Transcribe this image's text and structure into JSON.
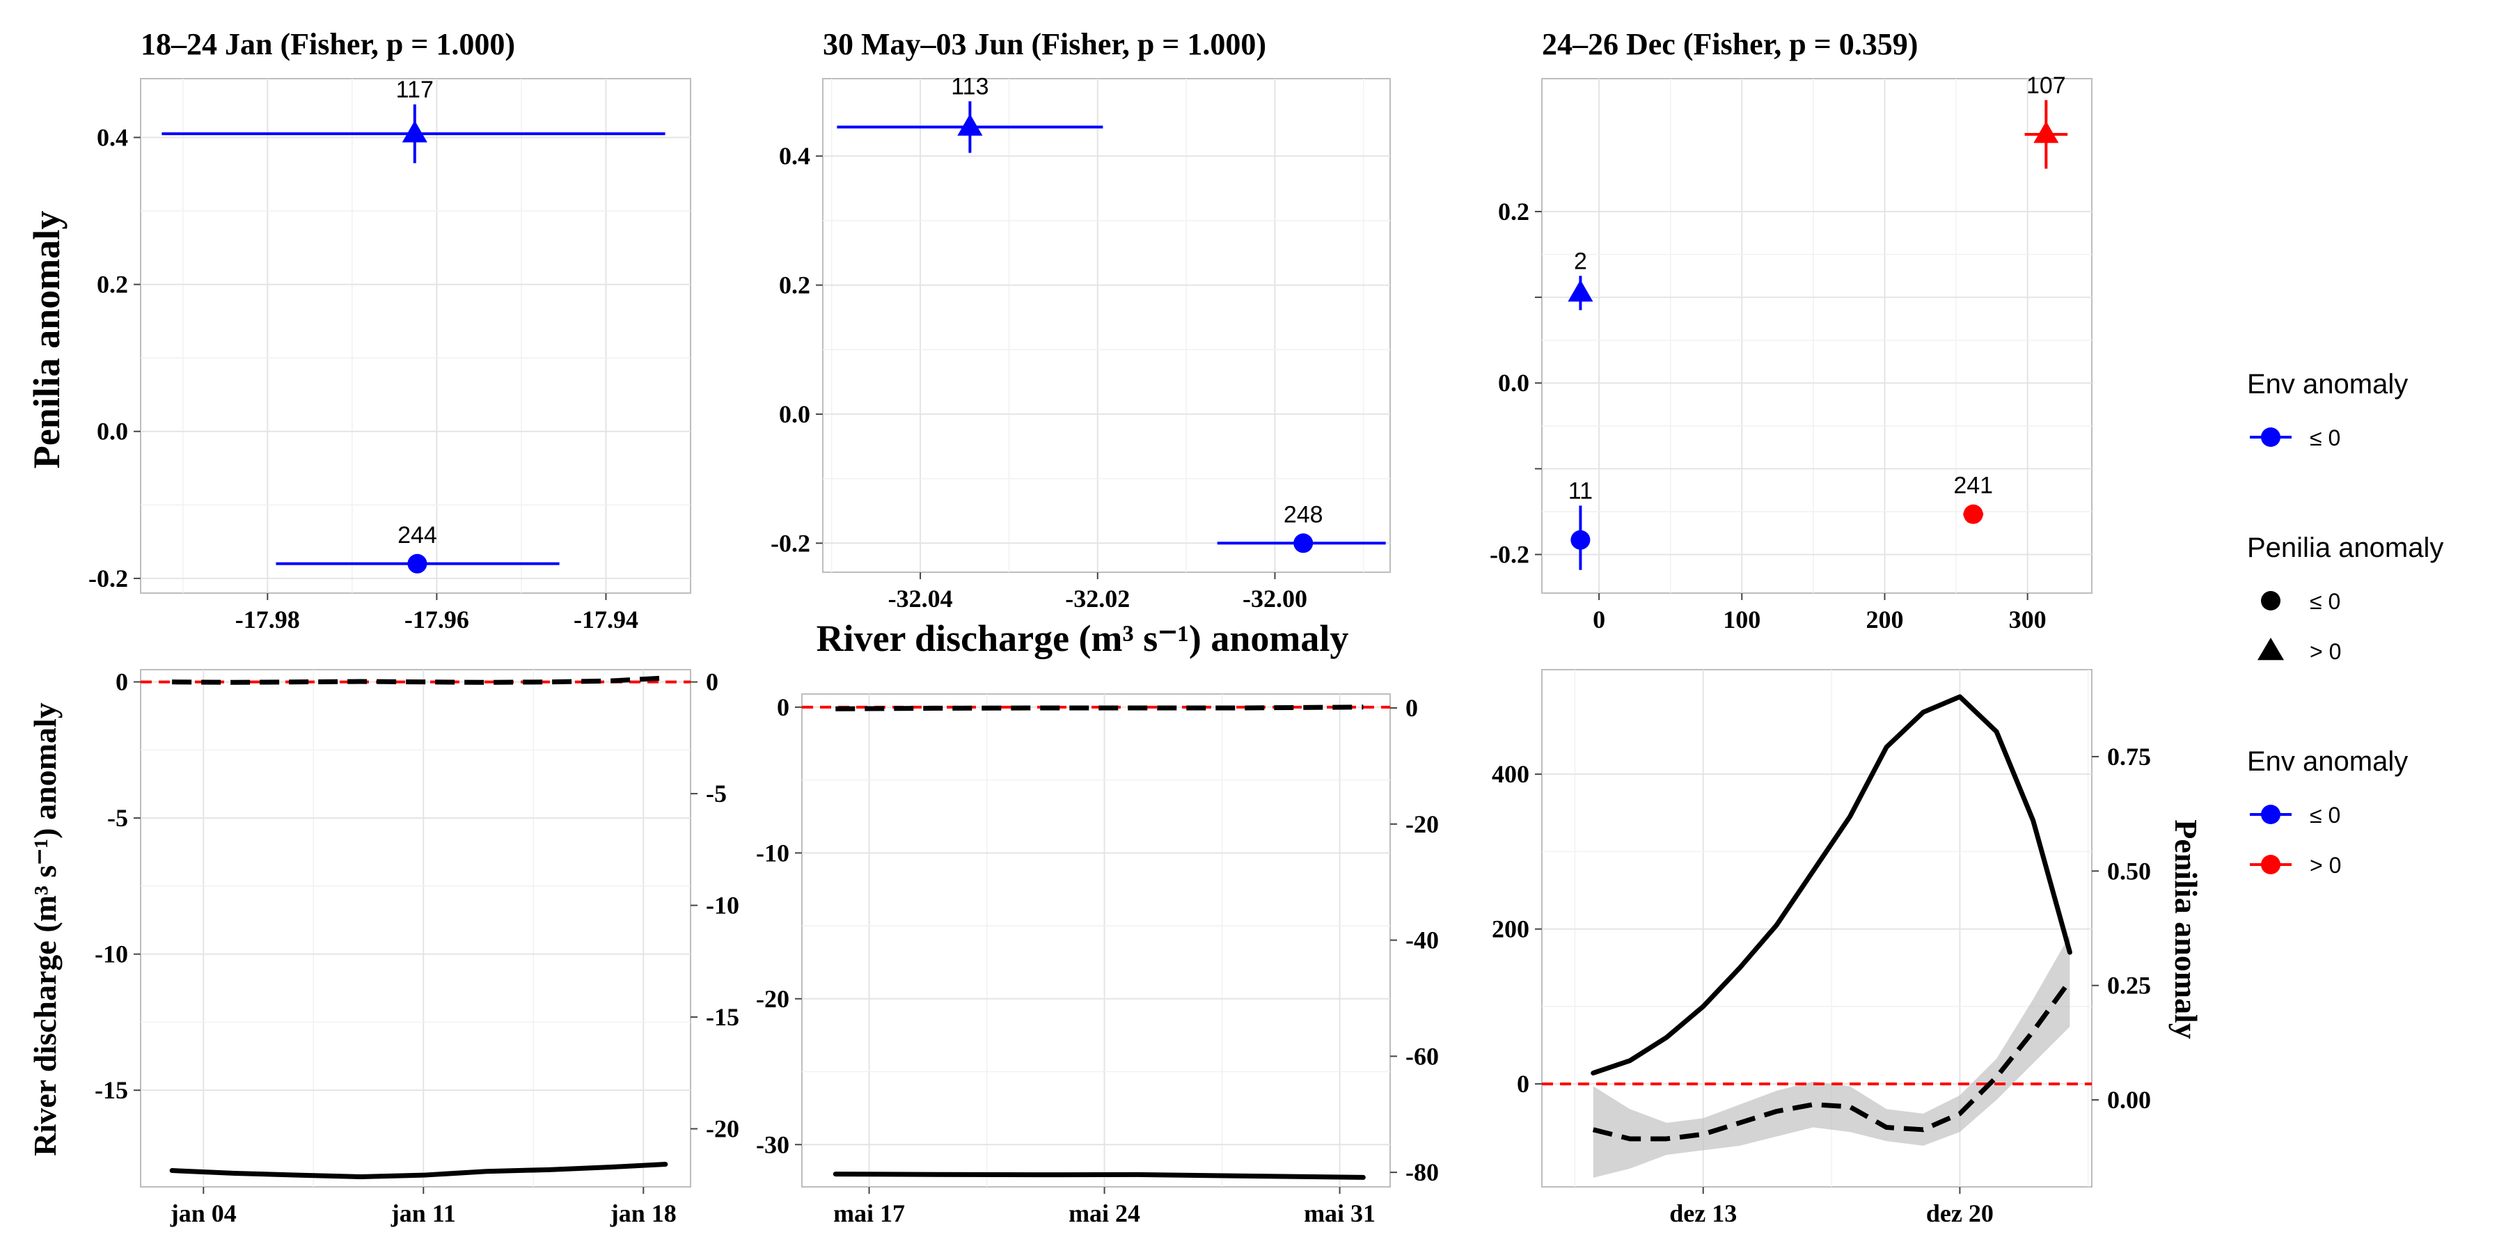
{
  "figure": {
    "shared_x_title": "River discharge (m³ s⁻¹) anomaly",
    "top_y_title": "Penilia anomaly",
    "bottom_left_y_title": "River discharge (m³ s⁻¹) anomaly",
    "bottom_right_y_title": "Penilia anomaly"
  },
  "colors": {
    "blue": "#0000ff",
    "red": "#ff0000",
    "black": "#000000",
    "zero_line": "#ff0000",
    "ribbon": "#bdbdbd"
  },
  "legend": {
    "groups": [
      {
        "title": "Env anomaly",
        "items": [
          {
            "label": "≤ 0",
            "kind": "line-point",
            "color": "#0000ff"
          }
        ]
      },
      {
        "title": "Penilia anomaly",
        "items": [
          {
            "label": "≤ 0",
            "kind": "circle",
            "color": "#000000"
          },
          {
            "label": "> 0",
            "kind": "triangle",
            "color": "#000000"
          }
        ]
      },
      {
        "title": "Env anomaly",
        "items": [
          {
            "label": "≤ 0",
            "kind": "line-point",
            "color": "#0000ff"
          },
          {
            "label": "> 0",
            "kind": "line-point",
            "color": "#ff0000"
          }
        ]
      }
    ]
  },
  "chart_data": [
    {
      "type": "scatter",
      "panel": "top-left",
      "title": "18–24 Jan (Fisher, p = 1.000)",
      "ylabel": "Penilia anomaly",
      "xlim": [
        -17.995,
        -17.93
      ],
      "ylim": [
        -0.22,
        0.48
      ],
      "xticks": [
        -17.98,
        -17.96,
        -17.94
      ],
      "xtick_labels": [
        "-17.98",
        "-17.96",
        "-17.94"
      ],
      "yticks": [
        -0.2,
        0.0,
        0.2,
        0.4
      ],
      "ytick_labels": [
        "-0.2",
        "0.0",
        "0.2",
        "0.4"
      ],
      "points": [
        {
          "x": -17.9626,
          "y": 0.405,
          "shape": "triangle",
          "color": "#0000ff",
          "xmin": -17.9925,
          "xmax": -17.933,
          "ymin": 0.365,
          "ymax": 0.445,
          "count": "117"
        },
        {
          "x": -17.9623,
          "y": -0.18,
          "shape": "circle",
          "color": "#0000ff",
          "xmin": -17.979,
          "xmax": -17.9455,
          "ymin": -0.18,
          "ymax": -0.18,
          "count": "244"
        }
      ]
    },
    {
      "type": "scatter",
      "panel": "top-middle",
      "title": "30 May–03 Jun (Fisher, p = 1.000)",
      "xlim": [
        -32.051,
        -31.987
      ],
      "ylim": [
        -0.245,
        0.52
      ],
      "xticks": [
        -32.04,
        -32.02,
        -32.0
      ],
      "xtick_labels": [
        "-32.04",
        "-32.02",
        "-32.00"
      ],
      "yticks": [
        -0.2,
        0.0,
        0.2,
        0.4
      ],
      "ytick_labels": [
        "-0.2",
        "0.0",
        "0.2",
        "0.4"
      ],
      "points": [
        {
          "x": -32.0344,
          "y": 0.445,
          "shape": "triangle",
          "color": "#0000ff",
          "xmin": -32.0494,
          "xmax": -32.0194,
          "ymin": 0.405,
          "ymax": 0.485,
          "count": "113"
        },
        {
          "x": -31.9968,
          "y": -0.2,
          "shape": "circle",
          "color": "#0000ff",
          "xmin": -32.0065,
          "xmax": -31.9875,
          "ymin": -0.2,
          "ymax": -0.2,
          "count": "248"
        }
      ]
    },
    {
      "type": "scatter",
      "panel": "top-right",
      "title": "24–26 Dec (Fisher, p = 0.359)",
      "xlim": [
        -40,
        345
      ],
      "ylim": [
        -0.245,
        0.355
      ],
      "xticks": [
        0,
        100,
        200,
        300
      ],
      "xtick_labels": [
        "0",
        "100",
        "200",
        "300"
      ],
      "yticks": [
        -0.2,
        -0.1,
        0.0,
        0.1,
        0.2
      ],
      "ytick_labels": [
        "-0.2",
        "",
        "0.0",
        "",
        "0.2"
      ],
      "points": [
        {
          "x": -13,
          "y": 0.105,
          "shape": "triangle",
          "color": "#0000ff",
          "xmin": -13,
          "xmax": -13,
          "ymin": 0.085,
          "ymax": 0.125,
          "count": "2"
        },
        {
          "x": -13,
          "y": -0.183,
          "shape": "circle",
          "color": "#0000ff",
          "xmin": -13,
          "xmax": -13,
          "ymin": -0.218,
          "ymax": -0.143,
          "count": "11"
        },
        {
          "x": 262,
          "y": -0.153,
          "shape": "circle",
          "color": "#ff0000",
          "xmin": 255,
          "xmax": 269,
          "ymin": -0.153,
          "ymax": -0.153,
          "count": "241"
        },
        {
          "x": 313,
          "y": 0.29,
          "shape": "triangle",
          "color": "#ff0000",
          "xmin": 298,
          "xmax": 328,
          "ymin": 0.25,
          "ymax": 0.33,
          "count": "107"
        }
      ]
    },
    {
      "type": "line",
      "panel": "bottom-left",
      "ylabel": "River discharge (m³ s⁻¹) anomaly",
      "xlim": [
        -2.0,
        15.5
      ],
      "ylim": [
        -18.55,
        0.45
      ],
      "xticks": [
        0,
        7,
        14
      ],
      "xtick_labels": [
        "jan 04",
        "jan 11",
        "jan 18"
      ],
      "yticks": [
        -15,
        -10,
        -5,
        0
      ],
      "ytick_labels": [
        "-15",
        "-10",
        "-5",
        "0"
      ],
      "y2lim": [
        -22.6,
        0.55
      ],
      "y2ticks": [
        -20,
        -15,
        -10,
        -5,
        0
      ],
      "y2tick_labels": [
        "-20",
        "-15",
        "-10",
        "-5",
        "0"
      ],
      "zero_line_y": 0,
      "series_primary": {
        "x": [
          -1,
          1,
          3,
          5,
          7,
          9,
          11,
          13,
          14.7
        ],
        "y": [
          -17.95,
          -18.05,
          -18.12,
          -18.18,
          -18.12,
          -17.98,
          -17.92,
          -17.82,
          -17.72
        ]
      },
      "series_secondary": {
        "x": [
          -1,
          1,
          3,
          5,
          7,
          9,
          11,
          13,
          14.7
        ],
        "y": [
          0.0,
          -0.02,
          0.0,
          0.02,
          0.0,
          -0.02,
          0.0,
          0.05,
          0.18
        ]
      }
    },
    {
      "type": "line",
      "panel": "bottom-middle",
      "xlim": [
        -2.0,
        15.5
      ],
      "ylim": [
        -32.9,
        0.9
      ],
      "xticks": [
        0,
        7,
        14
      ],
      "xtick_labels": [
        "mai 17",
        "mai 24",
        "mai 31"
      ],
      "yticks": [
        -30,
        -20,
        -10,
        0
      ],
      "ytick_labels": [
        "-30",
        "-20",
        "-10",
        "0"
      ],
      "y2lim": [
        -82.5,
        2.4
      ],
      "y2ticks": [
        -80,
        -60,
        -40,
        -20,
        0
      ],
      "y2tick_labels": [
        "-80",
        "-60",
        "-40",
        "-20",
        "0"
      ],
      "zero_line_y": 0,
      "series_primary": {
        "x": [
          -1,
          2,
          5,
          8,
          11,
          14.7
        ],
        "y": [
          -32.02,
          -32.05,
          -32.07,
          -32.06,
          -32.15,
          -32.25
        ]
      },
      "series_secondary": {
        "x": [
          -1,
          2,
          5,
          8,
          11,
          14.7
        ],
        "y": [
          -0.15,
          -0.05,
          0.0,
          0.0,
          0.0,
          0.15
        ]
      }
    },
    {
      "type": "line",
      "panel": "bottom-right",
      "ylabel": "Penilia anomaly",
      "xlim": [
        -2.4,
        12.6
      ],
      "ylim": [
        -133,
        535
      ],
      "xticks": [
        2,
        9
      ],
      "xtick_labels": [
        "dez 13",
        "dez 20"
      ],
      "yticks": [
        0,
        200,
        400
      ],
      "ytick_labels": [
        "0",
        "200",
        "400"
      ],
      "y2lim": [
        -0.19,
        0.94
      ],
      "y2ticks": [
        0.0,
        0.25,
        0.5,
        0.75
      ],
      "y2tick_labels": [
        "0.00",
        "0.25",
        "0.50",
        "0.75"
      ],
      "zero_line_y": 0,
      "series_primary": {
        "x": [
          -1,
          0,
          1,
          2,
          3,
          4,
          5,
          6,
          7,
          8,
          9,
          10,
          11,
          12
        ],
        "y": [
          14,
          30,
          60,
          100,
          150,
          205,
          275,
          345,
          435,
          480,
          500,
          455,
          340,
          170
        ]
      },
      "series_secondary": {
        "x": [
          -1,
          0,
          1,
          2,
          3,
          4,
          5,
          6,
          7,
          8,
          9,
          10,
          11,
          12
        ],
        "y": [
          -0.065,
          -0.085,
          -0.085,
          -0.075,
          -0.05,
          -0.025,
          -0.01,
          -0.015,
          -0.06,
          -0.065,
          -0.03,
          0.05,
          0.15,
          0.26
        ]
      },
      "ribbon_secondary": {
        "x": [
          -1,
          0,
          1,
          2,
          3,
          4,
          5,
          6,
          7,
          8,
          9,
          10,
          11,
          12
        ],
        "low": [
          -0.17,
          -0.15,
          -0.12,
          -0.11,
          -0.1,
          -0.08,
          -0.06,
          -0.07,
          -0.09,
          -0.1,
          -0.07,
          0.0,
          0.08,
          0.16
        ],
        "high": [
          0.03,
          -0.02,
          -0.05,
          -0.04,
          -0.01,
          0.02,
          0.04,
          0.03,
          -0.02,
          -0.03,
          0.01,
          0.09,
          0.22,
          0.36
        ]
      }
    }
  ]
}
